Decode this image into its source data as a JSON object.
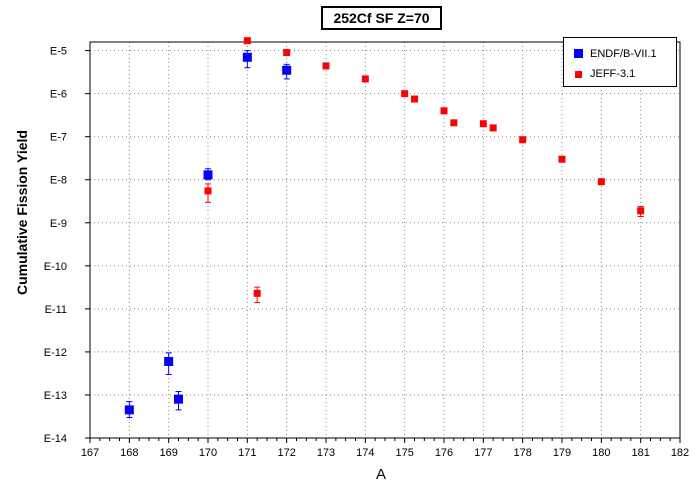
{
  "chart_data": {
    "type": "scatter",
    "title": "252Cf SF Z=70",
    "xlabel": "A",
    "ylabel": "Cumulative Fission Yield",
    "xlim": [
      167,
      182
    ],
    "ylim_log10": [
      -14,
      -4.8
    ],
    "y_scale": "log",
    "grid": true,
    "legend_position": "top-right",
    "x_ticks": [
      "167",
      "168",
      "169",
      "170",
      "171",
      "172",
      "173",
      "174",
      "175",
      "176",
      "177",
      "178",
      "179",
      "180",
      "181",
      "182"
    ],
    "y_ticks": [
      "E-5",
      "E-6",
      "E-7",
      "E-8",
      "E-9",
      "E-10",
      "E-11",
      "E-12",
      "E-13",
      "E-14"
    ],
    "series": [
      {
        "name": "ENDF/B-VII.1",
        "color": "#0000ff",
        "marker": "square-large",
        "points": [
          {
            "x": 168.0,
            "y": 4.5e-14,
            "err_lo": 1.5e-14,
            "err_hi": 2.5e-14
          },
          {
            "x": 169.0,
            "y": 6e-13,
            "err_lo": 3e-13,
            "err_hi": 3.5e-13
          },
          {
            "x": 169.25,
            "y": 8e-14,
            "err_lo": 3.5e-14,
            "err_hi": 4e-14
          },
          {
            "x": 170.0,
            "y": 1.3e-08,
            "err_lo": 3e-09,
            "err_hi": 5e-09
          },
          {
            "x": 171.0,
            "y": 7e-06,
            "err_lo": 3e-06,
            "err_hi": 3e-06
          },
          {
            "x": 172.0,
            "y": 3.5e-06,
            "err_lo": 1.3e-06,
            "err_hi": 1.3e-06
          }
        ]
      },
      {
        "name": "JEFF-3.1",
        "color": "#ff0000",
        "marker": "square-small",
        "points": [
          {
            "x": 170.0,
            "y": 5.5e-09,
            "err_lo": 2.5e-09,
            "err_hi": 2.5e-09
          },
          {
            "x": 171.0,
            "y": 1.7e-05
          },
          {
            "x": 171.25,
            "y": 2.3e-11,
            "err_lo": 9e-12,
            "err_hi": 9e-12
          },
          {
            "x": 172.0,
            "y": 9e-06
          },
          {
            "x": 173.0,
            "y": 4.4e-06
          },
          {
            "x": 174.0,
            "y": 2.2e-06
          },
          {
            "x": 175.0,
            "y": 1e-06
          },
          {
            "x": 175.25,
            "y": 7.5e-07
          },
          {
            "x": 176.0,
            "y": 4e-07
          },
          {
            "x": 176.25,
            "y": 2.1e-07
          },
          {
            "x": 177.0,
            "y": 2e-07
          },
          {
            "x": 177.25,
            "y": 1.6e-07
          },
          {
            "x": 178.0,
            "y": 8.5e-08
          },
          {
            "x": 179.0,
            "y": 3e-08
          },
          {
            "x": 180.0,
            "y": 9e-09
          },
          {
            "x": 181.0,
            "y": 1.9e-09,
            "err_lo": 5e-10,
            "err_hi": 5e-10
          }
        ]
      }
    ]
  }
}
